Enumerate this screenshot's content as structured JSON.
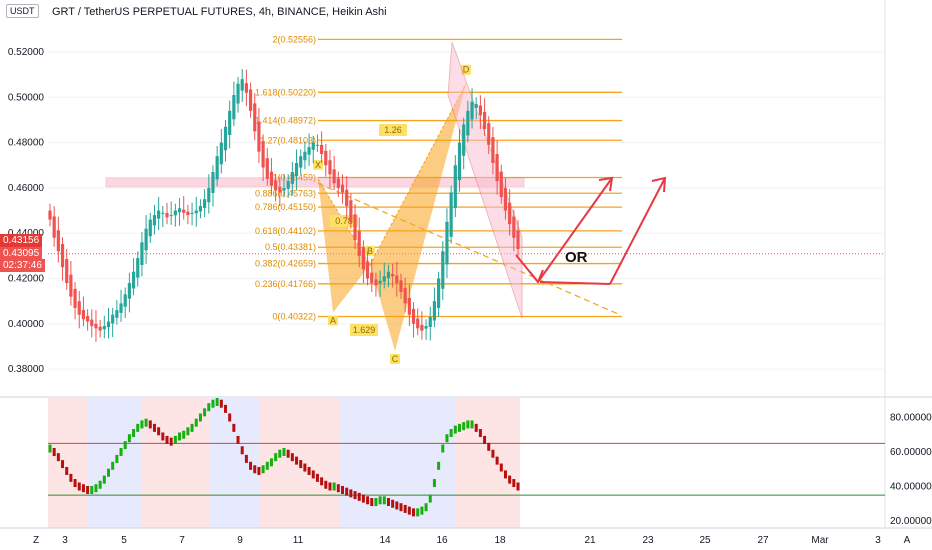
{
  "header": {
    "currency_label": "USDT",
    "title": "GRT / TetherUS PERPETUAL FUTURES, 4h, BINANCE, Heikin Ashi"
  },
  "price_badges": {
    "top": "0.43156",
    "mid": "0.43095",
    "timer": "02:37:46",
    "top_color": "#e53935",
    "mid_color": "#ef5350"
  },
  "colors": {
    "up": "#26a69a",
    "down": "#ef5350",
    "fib": "#f7a21b",
    "arrow": "#e53945",
    "osc_up": "#13b00f",
    "osc_down": "#b50f0f"
  },
  "annotations": {
    "or_label": "OR",
    "ratio_labels": [
      "1.26",
      "0.78",
      "1.629"
    ],
    "point_labels": [
      "X",
      "A",
      "B",
      "C",
      "D"
    ]
  },
  "chart_data": {
    "type": "candlestick",
    "title": "GRT / TetherUS PERPETUAL FUTURES, 4h, BINANCE, Heikin Ashi",
    "price_axis": {
      "ticks": [
        "0.52000",
        "0.50000",
        "0.48000",
        "0.46000",
        "0.44000",
        "0.42000",
        "0.40000",
        "0.38000"
      ],
      "range": [
        0.373,
        0.534
      ]
    },
    "x_ticks": [
      "3",
      "5",
      "7",
      "9",
      "11",
      "14",
      "16",
      "18",
      "21",
      "23",
      "25",
      "27",
      "Mar",
      "3"
    ],
    "series": [
      {
        "name": "Heikin Ashi",
        "close": [
          0.446,
          0.438,
          0.432,
          0.425,
          0.418,
          0.412,
          0.407,
          0.404,
          0.402,
          0.401,
          0.399,
          0.398,
          0.397,
          0.399,
          0.401,
          0.404,
          0.406,
          0.409,
          0.413,
          0.418,
          0.423,
          0.429,
          0.436,
          0.442,
          0.446,
          0.448,
          0.45,
          0.449,
          0.447,
          0.448,
          0.45,
          0.451,
          0.449,
          0.448,
          0.449,
          0.45,
          0.452,
          0.455,
          0.46,
          0.467,
          0.474,
          0.48,
          0.487,
          0.494,
          0.501,
          0.506,
          0.508,
          0.502,
          0.494,
          0.485,
          0.476,
          0.469,
          0.464,
          0.461,
          0.459,
          0.458,
          0.46,
          0.463,
          0.467,
          0.471,
          0.474,
          0.476,
          0.478,
          0.48,
          0.479,
          0.475,
          0.47,
          0.466,
          0.462,
          0.46,
          0.458,
          0.452,
          0.445,
          0.437,
          0.43,
          0.424,
          0.42,
          0.418,
          0.417,
          0.419,
          0.421,
          0.423,
          0.421,
          0.418,
          0.414,
          0.409,
          0.404,
          0.4,
          0.398,
          0.397,
          0.399,
          0.403,
          0.41,
          0.42,
          0.432,
          0.445,
          0.458,
          0.47,
          0.48,
          0.488,
          0.494,
          0.498,
          0.497,
          0.492,
          0.486,
          0.479,
          0.471,
          0.463,
          0.456,
          0.45,
          0.444,
          0.438,
          0.433
        ]
      }
    ],
    "fib_levels": [
      {
        "label": "2(0.52556)",
        "value": 0.52556
      },
      {
        "label": "1.618(0.50220)",
        "value": 0.5022
      },
      {
        "label": "1.414(0.48972)",
        "value": 0.48972
      },
      {
        "label": "1.27(0.48103)",
        "value": 0.48103
      },
      {
        "label": "1(0.46459)",
        "value": 0.46459
      },
      {
        "label": "0.886(0.45763)",
        "value": 0.45763
      },
      {
        "label": "0.786(0.45150)",
        "value": 0.4515
      },
      {
        "label": "0.618(0.44102)",
        "value": 0.44102
      },
      {
        "label": "0.5(0.43381)",
        "value": 0.43381
      },
      {
        "label": "0.382(0.42659)",
        "value": 0.42659
      },
      {
        "label": "0.236(0.41766)",
        "value": 0.41766
      },
      {
        "label": "0(0.40322)",
        "value": 0.40322
      }
    ],
    "oscillator": {
      "ticks": [
        "80.00000",
        "60.00000",
        "40.00000",
        "20.00000"
      ],
      "range": [
        10,
        92
      ],
      "upper_line": 65,
      "lower_line": 35,
      "values": [
        62,
        60,
        57,
        53,
        49,
        45,
        42,
        40,
        39,
        38,
        38,
        39,
        41,
        44,
        48,
        52,
        56,
        60,
        64,
        68,
        71,
        74,
        76,
        77,
        76,
        74,
        72,
        69,
        67,
        66,
        67,
        69,
        70,
        72,
        74,
        77,
        80,
        83,
        86,
        88,
        89,
        88,
        85,
        80,
        74,
        67,
        61,
        56,
        52,
        50,
        49,
        50,
        52,
        54,
        57,
        59,
        60,
        59,
        57,
        55,
        53,
        51,
        49,
        47,
        45,
        43,
        41,
        40,
        40,
        39,
        38,
        37,
        36,
        35,
        34,
        33,
        32,
        31,
        31,
        32,
        32,
        31,
        30,
        29,
        28,
        27,
        26,
        25,
        25,
        26,
        28,
        33,
        42,
        52,
        62,
        68,
        71,
        73,
        74,
        75,
        76,
        76,
        74,
        71,
        67,
        63,
        59,
        55,
        51,
        47,
        44,
        42,
        40
      ]
    }
  }
}
